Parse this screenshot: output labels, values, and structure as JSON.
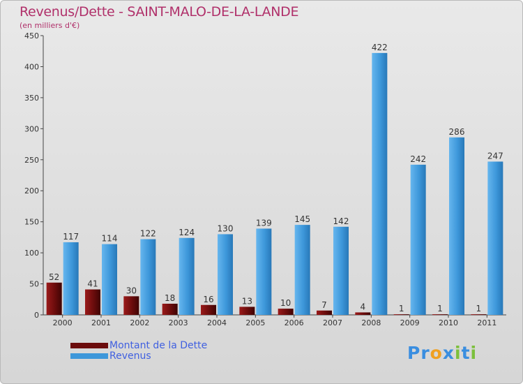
{
  "title": "Revenus/Dette - SAINT-MALO-DE-LA-LANDE",
  "subtitle": "(en milliers d'€)",
  "colors": {
    "debt": "#6b0c0c",
    "revenue": "#3d97da",
    "title": "#b0306a",
    "legend_text": "#4060e0"
  },
  "logo": {
    "text": "Proxiti",
    "letters": [
      "P",
      "r",
      "o",
      "x",
      "i",
      "t",
      "i"
    ],
    "letter_colors": [
      "#3a8ee0",
      "#3a8ee0",
      "#f0a020",
      "#3a8ee0",
      "#7cc03c",
      "#3a8ee0",
      "#7cc03c"
    ]
  },
  "chart_data": {
    "type": "bar",
    "categories": [
      "2000",
      "2001",
      "2002",
      "2003",
      "2004",
      "2005",
      "2006",
      "2007",
      "2008",
      "2009",
      "2010",
      "2011"
    ],
    "series": [
      {
        "name": "Montant de la Dette",
        "values": [
          52,
          41,
          30,
          18,
          16,
          13,
          10,
          7,
          4,
          1,
          1,
          1
        ]
      },
      {
        "name": "Revenus",
        "values": [
          117,
          114,
          122,
          124,
          130,
          139,
          145,
          142,
          422,
          242,
          286,
          247
        ]
      }
    ],
    "yticks": [
      0,
      50,
      100,
      150,
      200,
      250,
      300,
      350,
      400,
      450
    ],
    "ylim": [
      0,
      450
    ],
    "grid": false,
    "legend": "bottom-left"
  }
}
